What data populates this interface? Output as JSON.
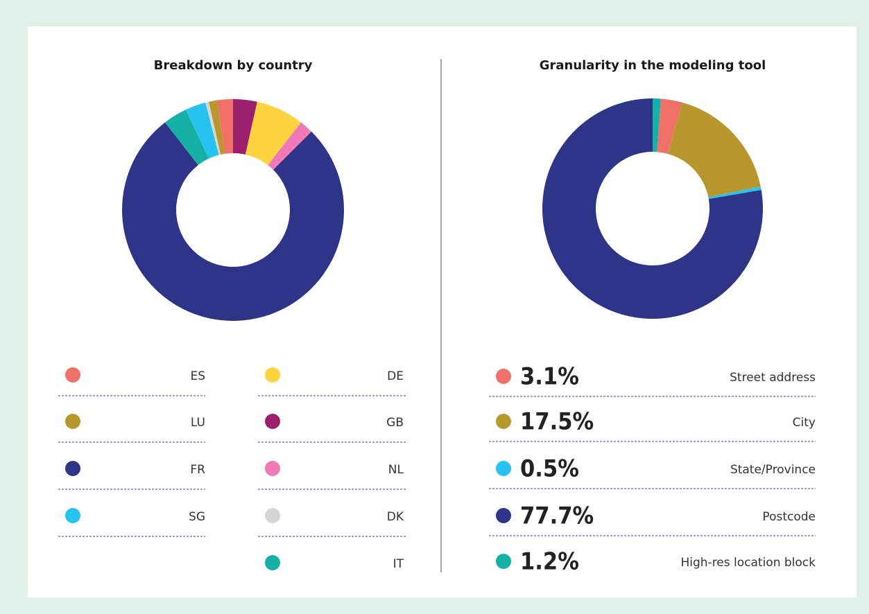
{
  "chart_data": [
    {
      "type": "donut",
      "title": "Breakdown by country",
      "categories": [
        "GB",
        "DE",
        "NL",
        "FR",
        "IT",
        "SG",
        "DK",
        "LU",
        "ES"
      ],
      "values": [
        3.5,
        7,
        2,
        77,
        3.5,
        3,
        0.5,
        1.2,
        2.3
      ],
      "colors": [
        "#9c1f6e",
        "#ffd23f",
        "#f07ab8",
        "#2e3488",
        "#17b0a7",
        "#27c3f0",
        "#d6d6d6",
        "#b8972e",
        "#f07167"
      ]
    },
    {
      "type": "donut",
      "title": "Granularity in the modeling tool",
      "categories": [
        "Street address",
        "City",
        "State/Province",
        "Postcode",
        "High-res location block"
      ],
      "values": [
        3.1,
        17.5,
        0.5,
        77.7,
        1.2
      ],
      "value_labels": [
        "3.1%",
        "17.5%",
        "0.5%",
        "77.7%",
        "1.2%"
      ],
      "colors": [
        "#f07167",
        "#b8972e",
        "#27c3f0",
        "#2e3488",
        "#17b0a7"
      ]
    }
  ]
}
